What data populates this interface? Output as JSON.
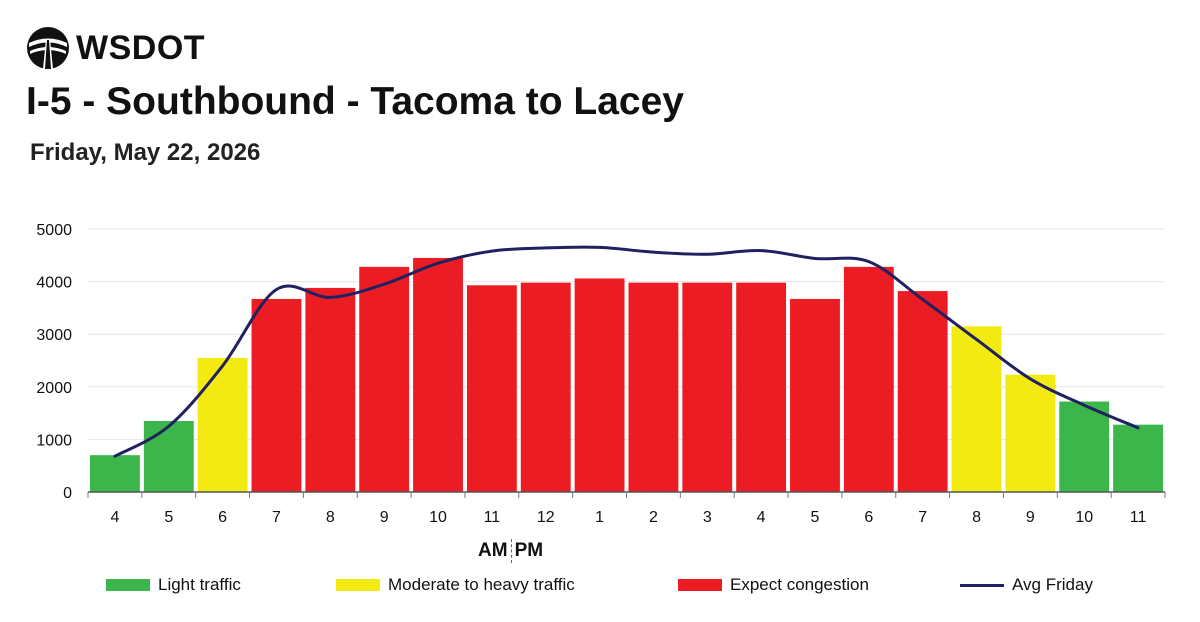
{
  "header": {
    "logo_text": "WSDOT",
    "title": "I-5 - Southbound - Tacoma to Lacey",
    "subtitle": "Friday, May 22, 2026"
  },
  "colors": {
    "light": "#3cb54a",
    "moderate": "#f2ea11",
    "congestion": "#ec1c24",
    "avg_line": "#1f2160",
    "grid": "#e6e6e6"
  },
  "chart_data": {
    "type": "bar",
    "categories": [
      "4",
      "5",
      "6",
      "7",
      "8",
      "9",
      "10",
      "11",
      "12",
      "1",
      "2",
      "3",
      "4",
      "5",
      "6",
      "7",
      "8",
      "9",
      "10",
      "11"
    ],
    "series": [
      {
        "values": [
          700,
          1350,
          2550,
          3670,
          3880,
          4280,
          4450,
          3930,
          3980,
          4060,
          3980,
          3980,
          3980,
          3670,
          4280,
          3820,
          3150,
          2230,
          1720,
          1280
        ],
        "levels": [
          "light",
          "light",
          "moderate",
          "congestion",
          "congestion",
          "congestion",
          "congestion",
          "congestion",
          "congestion",
          "congestion",
          "congestion",
          "congestion",
          "congestion",
          "congestion",
          "congestion",
          "congestion",
          "moderate",
          "moderate",
          "light",
          "light"
        ]
      },
      {
        "name": "Avg Friday",
        "type": "line",
        "values": [
          680,
          1250,
          2400,
          3850,
          3700,
          3950,
          4350,
          4580,
          4640,
          4650,
          4560,
          4520,
          4590,
          4440,
          4380,
          3660,
          2900,
          2150,
          1650,
          1220
        ]
      }
    ],
    "yticks": [
      0,
      1000,
      2000,
      3000,
      4000,
      5000
    ],
    "ylim": [
      0,
      5000
    ],
    "grid": true,
    "legend_position": "bottom",
    "am_pm_marker": {
      "am": "AM",
      "pm": "PM"
    },
    "legend": [
      {
        "key": "light",
        "label": "Light traffic",
        "kind": "bar"
      },
      {
        "key": "moderate",
        "label": "Moderate to heavy traffic",
        "kind": "bar"
      },
      {
        "key": "congestion",
        "label": "Expect congestion",
        "kind": "bar"
      },
      {
        "key": "avg_line",
        "label": "Avg Friday",
        "kind": "line"
      }
    ]
  }
}
